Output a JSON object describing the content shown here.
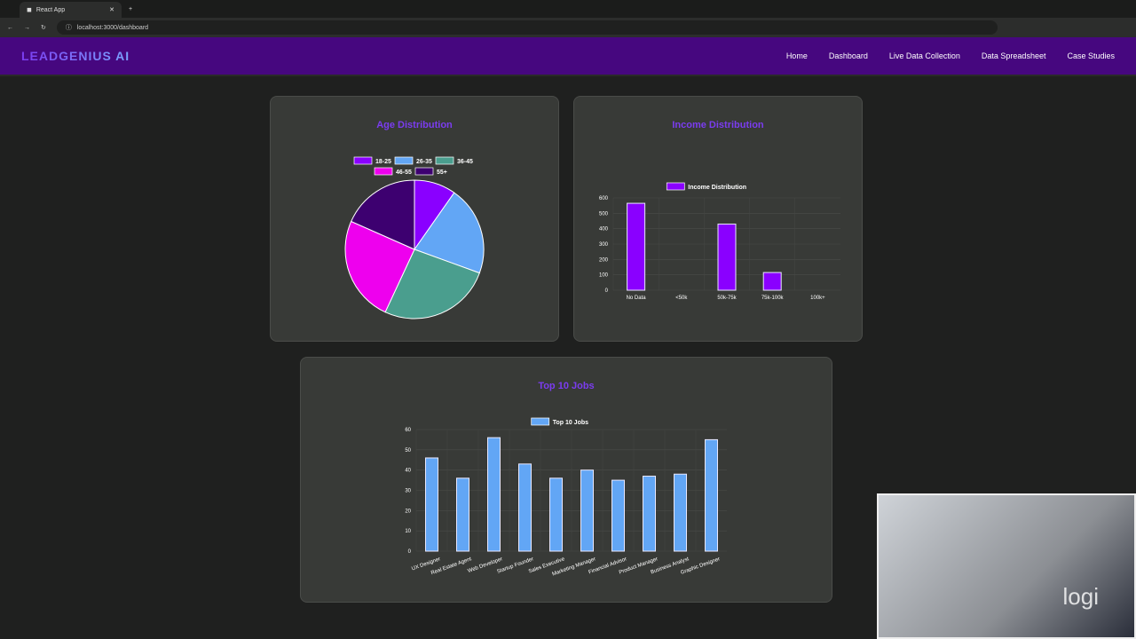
{
  "browser": {
    "tab_title": "React App",
    "url": "localhost:3000/dashboard"
  },
  "nav": {
    "logo": "LEADGENIUS AI",
    "links": [
      "Home",
      "Dashboard",
      "Live Data Collection",
      "Data Spreadsheet",
      "Case Studies"
    ]
  },
  "chart_data": [
    {
      "type": "pie",
      "title": "Age Distribution",
      "categories": [
        "18-25",
        "26-35",
        "36-45",
        "46-55",
        "55+"
      ],
      "values": [
        108,
        231,
        293,
        274,
        204
      ],
      "colors": [
        "#8a00ff",
        "#62a6f5",
        "#4a9e8e",
        "#ee00ee",
        "#3d0070"
      ],
      "legend": "top"
    },
    {
      "type": "bar",
      "title": "Income Distribution",
      "categories": [
        "No Data",
        "<50k",
        "50k-75k",
        "75k-100k",
        "100k+"
      ],
      "series": [
        {
          "name": "Income Distribution",
          "values": [
            565,
            0,
            430,
            115,
            0
          ]
        }
      ],
      "ylim": [
        0,
        600
      ],
      "yticks": [
        0,
        100,
        200,
        300,
        400,
        500,
        600
      ],
      "color": "#8a00ff",
      "grid": true,
      "legend": "top"
    },
    {
      "type": "bar",
      "title": "Top 10 Jobs",
      "categories": [
        "UX Designer",
        "Real Estate Agent",
        "Web Developer",
        "Startup Founder",
        "Sales Executive",
        "Marketing Manager",
        "Financial Advisor",
        "Product Manager",
        "Business Analyst",
        "Graphic Designer"
      ],
      "series": [
        {
          "name": "Top 10 Jobs",
          "values": [
            46,
            36,
            56,
            43,
            36,
            40,
            35,
            37,
            38,
            55
          ]
        }
      ],
      "ylim": [
        0,
        60
      ],
      "yticks": [
        0,
        10,
        20,
        30,
        40,
        50,
        60
      ],
      "color": "#62a6f5",
      "grid": true,
      "legend": "top"
    }
  ],
  "webcam": {
    "logo": "logi"
  }
}
